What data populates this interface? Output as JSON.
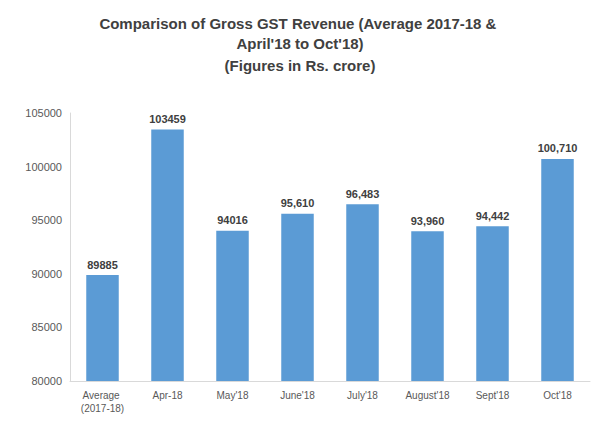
{
  "chart_data": {
    "type": "bar",
    "title": "Comparison of Gross GST Revenue (Average 2017-18 & April'18 to Oct'18)",
    "subtitle": "(Figures in Rs. crore)",
    "categories": [
      "Average (2017-18)",
      "Apr-18",
      "May'18",
      "June'18",
      "July'18",
      "August'18",
      "Sept'18",
      "Oct'18"
    ],
    "values": [
      89885,
      103459,
      94016,
      95610,
      96483,
      93960,
      94442,
      100710
    ],
    "value_labels": [
      "89885",
      "103459",
      "94016",
      "95,610",
      "96,483",
      "93,960",
      "94,442",
      "100,710"
    ],
    "color": "#5b9bd5",
    "ylim": [
      80000,
      105000
    ],
    "yticks": [
      80000,
      85000,
      90000,
      95000,
      100000,
      105000
    ],
    "grid": false,
    "data_labels": true
  }
}
